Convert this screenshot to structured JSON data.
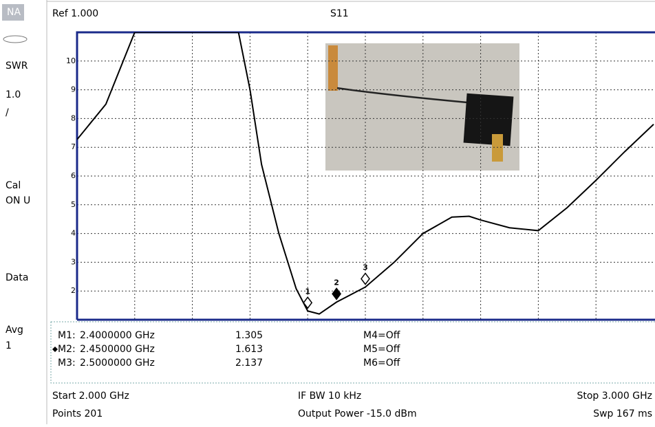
{
  "sidebar": [
    "NA",
    "SWR",
    "1.0",
    "/",
    "Cal",
    "ON U",
    "Data",
    "Avg",
    "1"
  ],
  "header": {
    "ref": "Ref 1.000",
    "param": "S11"
  },
  "chart_data": {
    "type": "line",
    "color": "#000000",
    "x": [
      2.0,
      2.05,
      2.08,
      2.1,
      2.28,
      2.3,
      2.32,
      2.35,
      2.38,
      2.4,
      2.42,
      2.45,
      2.5,
      2.55,
      2.6,
      2.65,
      2.68,
      2.7,
      2.75,
      2.8,
      2.85,
      2.9,
      2.95,
      3.0
    ],
    "values": [
      7.27,
      8.5,
      10.0,
      11,
      11,
      9.0,
      6.4,
      4.0,
      2.08,
      1.305,
      1.2,
      1.613,
      2.137,
      3.0,
      4.0,
      4.57,
      4.6,
      4.47,
      4.2,
      4.1,
      4.9,
      5.85,
      6.85,
      7.8
    ],
    "xlim": [
      2.0,
      3.0
    ],
    "xticks": [
      2.1,
      2.2,
      2.3,
      2.4,
      2.5,
      2.6,
      2.7,
      2.8,
      2.9
    ],
    "ylim": [
      1,
      11
    ],
    "yticks": [
      2,
      3,
      4,
      5,
      6,
      7,
      8,
      9,
      10
    ],
    "grid": true,
    "markers": [
      {
        "label": "1",
        "name": "M1:",
        "x": 2.4,
        "x_label": "2.4000000 GHz",
        "value": 1.305,
        "active": false
      },
      {
        "label": "2",
        "name": "M2:",
        "x": 2.45,
        "x_label": "2.4500000 GHz",
        "value": 1.613,
        "active": true
      },
      {
        "label": "3",
        "name": "M3:",
        "x": 2.5,
        "x_label": "2.5000000 GHz",
        "value": 2.137,
        "active": false
      }
    ],
    "markers_off": [
      "M4=Off",
      "M5=Off",
      "M6=Off"
    ]
  },
  "footer": {
    "start": "Start 2.000 GHz",
    "ifbw": "IF BW 10 kHz",
    "stop": "Stop 3.000 GHz",
    "points": "Points 201",
    "power": "Output Power -15.0 dBm",
    "sweep": "Swp 167 ms"
  }
}
